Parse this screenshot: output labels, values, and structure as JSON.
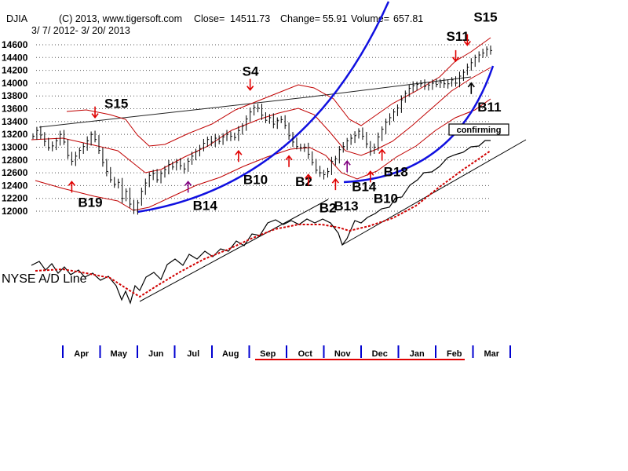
{
  "chart_data": {
    "type": "line",
    "title": "DJIA",
    "copyright": "(C) 2013, www.tigersoft.com",
    "close_label": "Close=",
    "close": "14511.73",
    "change_label": "Change=",
    "change": "55.91",
    "volume_label": "Volume=",
    "volume": "657.81",
    "date_range": "3/ 7/ 2012- 3/ 20/ 2013",
    "ylim": [
      12000,
      14600
    ],
    "y_ticks": [
      "12000",
      "12200",
      "12400",
      "12600",
      "12800",
      "13000",
      "13200",
      "13400",
      "13600",
      "13800",
      "14000",
      "14200",
      "14400",
      "14600"
    ],
    "months": [
      "Apr",
      "May",
      "Jun",
      "Jul",
      "Aug",
      "Sep",
      "Oct",
      "Nov",
      "Dec",
      "Jan",
      "Feb",
      "Mar"
    ],
    "indicator_label": "NYSE A/D Line",
    "status_box": "confirming",
    "djia_closes": [
      13170,
      13260,
      13190,
      13090,
      12990,
      13020,
      13100,
      13200,
      13080,
      12870,
      12780,
      12860,
      12950,
      13010,
      13100,
      13200,
      13120,
      12950,
      12760,
      12620,
      12490,
      12420,
      12450,
      12200,
      12310,
      12110,
      12020,
      12130,
      12310,
      12440,
      12560,
      12590,
      12490,
      12590,
      12650,
      12730,
      12690,
      12760,
      12710,
      12660,
      12780,
      12860,
      12930,
      12980,
      13060,
      13120,
      13080,
      13140,
      13090,
      13160,
      13200,
      13170,
      13150,
      13260,
      13330,
      13440,
      13550,
      13620,
      13610,
      13500,
      13420,
      13460,
      13360,
      13420,
      13430,
      13340,
      13180,
      13080,
      13010,
      12990,
      13000,
      12890,
      12760,
      12640,
      12600,
      12570,
      12620,
      12780,
      12820,
      12960,
      13010,
      13100,
      13140,
      13180,
      13250,
      13170,
      13050,
      12940,
      13000,
      13160,
      13280,
      13390,
      13460,
      13550,
      13610,
      13740,
      13840,
      13920,
      13960,
      13980,
      13990,
      13950,
      13970,
      14000,
      13980,
      14020,
      13990,
      13990,
      14050,
      14000,
      14110,
      14170,
      14250,
      14320,
      14400,
      14440,
      14470,
      14530,
      14510
    ],
    "signals": [
      {
        "label": "S15",
        "kind": "sell",
        "color": "red",
        "i": 16
      },
      {
        "label": "B19",
        "kind": "buy",
        "color": "red",
        "i": 10
      },
      {
        "label": "B14",
        "kind": "buy",
        "color": "purple",
        "i": 40
      },
      {
        "label": "S4",
        "kind": "sell",
        "color": "red",
        "i": 56
      },
      {
        "label": "B10",
        "kind": "buy",
        "color": "red",
        "i": 53
      },
      {
        "label": "B2",
        "kind": "buy",
        "color": "red",
        "i": 66
      },
      {
        "label": "B2",
        "kind": "buy",
        "color": "red",
        "i": 71
      },
      {
        "label": "B13",
        "kind": "buy",
        "color": "red",
        "i": 78
      },
      {
        "label": "B14",
        "kind": "buy",
        "color": "purple",
        "i": 81
      },
      {
        "label": "B10",
        "kind": "buy",
        "color": "red",
        "i": 87
      },
      {
        "label": "B18",
        "kind": "buy",
        "color": "red",
        "i": 90
      },
      {
        "label": "S11",
        "kind": "sell",
        "color": "red",
        "i": 109
      },
      {
        "label": "S15",
        "kind": "sell",
        "color": "red",
        "i": 112
      },
      {
        "label": "B11",
        "kind": "buy",
        "color": "black",
        "i": 113
      }
    ]
  }
}
